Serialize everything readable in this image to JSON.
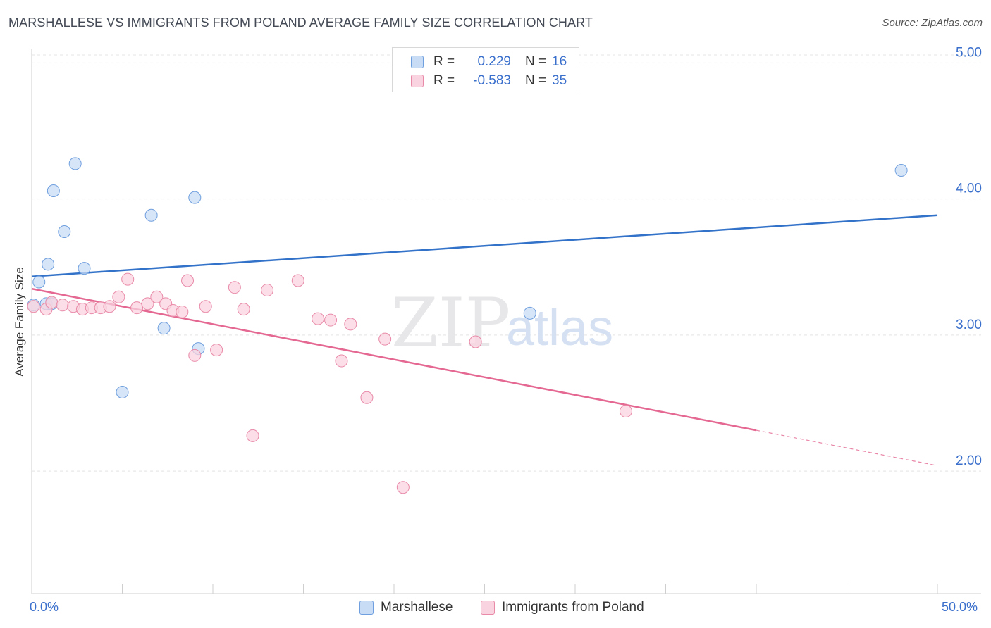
{
  "title": "MARSHALLESE VS IMMIGRANTS FROM POLAND AVERAGE FAMILY SIZE CORRELATION CHART",
  "source": "Source: ZipAtlas.com",
  "watermark": {
    "zip": "ZIP",
    "atlas": "atlas"
  },
  "legend": {
    "r_label": "R =",
    "n_label": "N =",
    "rows": [
      {
        "name": "Marshallese",
        "r": "0.229",
        "n": "16",
        "color": "#a9c8f0",
        "border": "#6f9fde"
      },
      {
        "name": "Immigrants from Poland",
        "r": "-0.583",
        "n": "35",
        "color": "#f7c2d2",
        "border": "#e98aa8"
      }
    ]
  },
  "chart_data": {
    "type": "scatter",
    "title": "MARSHALLESE VS IMMIGRANTS FROM POLAND AVERAGE FAMILY SIZE CORRELATION CHART",
    "xlabel": "",
    "ylabel": "Average Family Size",
    "xlim": [
      0,
      50
    ],
    "ylim": [
      1.1,
      5.1
    ],
    "x_tick_labels": [
      "0.0%",
      "50.0%"
    ],
    "y_ticks": [
      2.0,
      3.0,
      4.0,
      5.0
    ],
    "y_tick_labels": [
      "2.00",
      "3.00",
      "4.00",
      "5.00"
    ],
    "grid": true,
    "legend_position": "top-center",
    "series": [
      {
        "name": "Marshallese",
        "color": "#6f9fde",
        "fill": "#c9dcf6",
        "points": [
          [
            0.1,
            3.22
          ],
          [
            0.4,
            3.39
          ],
          [
            0.8,
            3.23
          ],
          [
            0.9,
            3.52
          ],
          [
            1.1,
            3.23
          ],
          [
            1.2,
            4.06
          ],
          [
            1.8,
            3.76
          ],
          [
            2.4,
            4.26
          ],
          [
            2.9,
            3.49
          ],
          [
            5.0,
            2.58
          ],
          [
            6.6,
            3.88
          ],
          [
            7.3,
            3.05
          ],
          [
            9.0,
            4.01
          ],
          [
            9.2,
            2.9
          ],
          [
            27.5,
            3.16
          ],
          [
            48.0,
            4.21
          ]
        ],
        "trend": {
          "x": [
            0,
            50
          ],
          "y": [
            3.43,
            3.88
          ],
          "style": "solid"
        }
      },
      {
        "name": "Immigrants from Poland",
        "color": "#e98aa8",
        "fill": "#f9d3df",
        "points": [
          [
            0.1,
            3.21
          ],
          [
            0.8,
            3.19
          ],
          [
            1.1,
            3.24
          ],
          [
            1.7,
            3.22
          ],
          [
            2.3,
            3.21
          ],
          [
            2.8,
            3.19
          ],
          [
            3.3,
            3.2
          ],
          [
            3.8,
            3.2
          ],
          [
            4.3,
            3.21
          ],
          [
            4.8,
            3.28
          ],
          [
            5.3,
            3.41
          ],
          [
            5.8,
            3.2
          ],
          [
            6.4,
            3.23
          ],
          [
            6.9,
            3.28
          ],
          [
            7.4,
            3.23
          ],
          [
            7.8,
            3.18
          ],
          [
            8.3,
            3.17
          ],
          [
            8.6,
            3.4
          ],
          [
            9.0,
            2.85
          ],
          [
            9.6,
            3.21
          ],
          [
            10.2,
            2.89
          ],
          [
            11.2,
            3.35
          ],
          [
            11.7,
            3.19
          ],
          [
            12.2,
            2.26
          ],
          [
            13.0,
            3.33
          ],
          [
            14.7,
            3.4
          ],
          [
            15.8,
            3.12
          ],
          [
            16.5,
            3.11
          ],
          [
            17.1,
            2.81
          ],
          [
            17.6,
            3.08
          ],
          [
            18.5,
            2.54
          ],
          [
            19.5,
            2.97
          ],
          [
            20.5,
            1.88
          ],
          [
            24.5,
            2.95
          ],
          [
            32.8,
            2.44
          ]
        ],
        "trend": {
          "x": [
            0,
            40
          ],
          "y": [
            3.34,
            2.3
          ],
          "style": "solid",
          "dashed_extension_to": [
            50,
            2.04
          ]
        }
      }
    ]
  }
}
